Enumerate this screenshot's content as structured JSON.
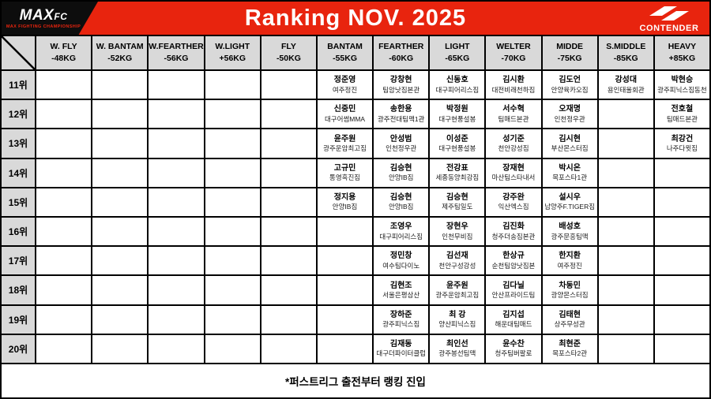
{
  "header": {
    "title": "Ranking NOV. 2025",
    "maxfc_logo": {
      "brand": "MAX",
      "brand_suffix": "FC",
      "tagline": "MAX FIGHTING CHAMPIONSHIP"
    },
    "contender_logo": {
      "brand": "CONTENDER",
      "icon": "contender-double-chevron-icon"
    }
  },
  "colors": {
    "header_bg": "#e8240e",
    "logo_black": "#0d0d0d",
    "grid_line": "#000000",
    "header_cell_bg": "#d9d9d9",
    "cell_bg": "#ffffff"
  },
  "table": {
    "corner_icon": "diagonal-slash-icon",
    "columns": [
      {
        "label": "W. FLY",
        "weight": "-48KG"
      },
      {
        "label": "W. BANTAM",
        "weight": "-52KG"
      },
      {
        "label": "W.FEARTHER",
        "weight": "-56KG"
      },
      {
        "label": "W.LIGHT",
        "weight": "+56KG"
      },
      {
        "label": "FLY",
        "weight": "-50KG"
      },
      {
        "label": "BANTAM",
        "weight": "-55KG"
      },
      {
        "label": "FEARTHER",
        "weight": "-60KG"
      },
      {
        "label": "LIGHT",
        "weight": "-65KG"
      },
      {
        "label": "WELTER",
        "weight": "-70KG"
      },
      {
        "label": "MIDDE",
        "weight": "-75KG"
      },
      {
        "label": "S.MIDDLE",
        "weight": "-85KG"
      },
      {
        "label": "HEAVY",
        "weight": "+85KG"
      }
    ],
    "rows": [
      {
        "rank": "11위",
        "cells": [
          null,
          null,
          null,
          null,
          null,
          {
            "name": "정준영",
            "gym": "여주정진"
          },
          {
            "name": "강창현",
            "gym": "팀암낫짐본관"
          },
          {
            "name": "신동호",
            "gym": "대구피어리스짐"
          },
          {
            "name": "김시환",
            "gym": "대전비래천하짐"
          },
          {
            "name": "김도언",
            "gym": "안양육카오짐"
          },
          {
            "name": "강성대",
            "gym": "용인태울회관"
          },
          {
            "name": "박현승",
            "gym": "광주피닉스짐동천"
          }
        ]
      },
      {
        "rank": "12위",
        "cells": [
          null,
          null,
          null,
          null,
          null,
          {
            "name": "신중민",
            "gym": "대구어썸MMA"
          },
          {
            "name": "송한용",
            "gym": "광주전대팀맥1관"
          },
          {
            "name": "박정원",
            "gym": "대구현풍설봉"
          },
          {
            "name": "서수혁",
            "gym": "팀매드본관"
          },
          {
            "name": "오재명",
            "gym": "인천정우관"
          },
          null,
          {
            "name": "전호철",
            "gym": "팀매드본관"
          }
        ]
      },
      {
        "rank": "13위",
        "cells": [
          null,
          null,
          null,
          null,
          null,
          {
            "name": "윤주원",
            "gym": "광주운암최고짐"
          },
          {
            "name": "안성범",
            "gym": "인천정우관"
          },
          {
            "name": "이성준",
            "gym": "대구현풍설봉"
          },
          {
            "name": "성기준",
            "gym": "천안강성짐"
          },
          {
            "name": "김시현",
            "gym": "부산몬스터짐"
          },
          null,
          {
            "name": "최강건",
            "gym": "나주다윗짐"
          }
        ]
      },
      {
        "rank": "14위",
        "cells": [
          null,
          null,
          null,
          null,
          null,
          {
            "name": "고규민",
            "gym": "통영흑진짐"
          },
          {
            "name": "김승현",
            "gym": "안양IB짐"
          },
          {
            "name": "전강표",
            "gym": "세종동양최강짐"
          },
          {
            "name": "장재현",
            "gym": "마산팀스타내서"
          },
          {
            "name": "박시온",
            "gym": "목포스타1관"
          },
          null,
          null
        ]
      },
      {
        "rank": "15위",
        "cells": [
          null,
          null,
          null,
          null,
          null,
          {
            "name": "정지용",
            "gym": "안양IB짐"
          },
          {
            "name": "김승현",
            "gym": "안양IB짐"
          },
          {
            "name": "김승현",
            "gym": "제주팀일도"
          },
          {
            "name": "강주완",
            "gym": "익산엑스짐"
          },
          {
            "name": "설시우",
            "gym": "남양주F.TIGER짐"
          },
          null,
          null
        ]
      },
      {
        "rank": "16위",
        "cells": [
          null,
          null,
          null,
          null,
          null,
          null,
          {
            "name": "조영우",
            "gym": "대구피어리스짐"
          },
          {
            "name": "장현우",
            "gym": "인천무비짐"
          },
          {
            "name": "김진화",
            "gym": "청주더송짐본관"
          },
          {
            "name": "배성호",
            "gym": "광주문흥팀맥"
          },
          null,
          null
        ]
      },
      {
        "rank": "17위",
        "cells": [
          null,
          null,
          null,
          null,
          null,
          null,
          {
            "name": "정민창",
            "gym": "여수팀다이노"
          },
          {
            "name": "김선재",
            "gym": "천안구성강성"
          },
          {
            "name": "한상규",
            "gym": "순천팀암낫짐본"
          },
          {
            "name": "한지환",
            "gym": "여주정진"
          },
          null,
          null
        ]
      },
      {
        "rank": "18위",
        "cells": [
          null,
          null,
          null,
          null,
          null,
          null,
          {
            "name": "김현조",
            "gym": "서울은평삼산"
          },
          {
            "name": "윤주원",
            "gym": "광주운암최고짐"
          },
          {
            "name": "김다닐",
            "gym": "안산프라이드팀"
          },
          {
            "name": "차동민",
            "gym": "광양몬스터짐"
          },
          null,
          null
        ]
      },
      {
        "rank": "19위",
        "cells": [
          null,
          null,
          null,
          null,
          null,
          null,
          {
            "name": "장하준",
            "gym": "광주피닉스짐"
          },
          {
            "name": "최 강",
            "gym": "양산피닉스짐"
          },
          {
            "name": "김지섭",
            "gym": "해운대팀매드"
          },
          {
            "name": "김태현",
            "gym": "상주무성관"
          },
          null,
          null
        ]
      },
      {
        "rank": "20위",
        "cells": [
          null,
          null,
          null,
          null,
          null,
          null,
          {
            "name": "김재동",
            "gym": "대구더파이터클럽"
          },
          {
            "name": "최인선",
            "gym": "광주봉선팀맥"
          },
          {
            "name": "윤수찬",
            "gym": "청주팀버팔로"
          },
          {
            "name": "최현준",
            "gym": "목포스타2관"
          },
          null,
          null
        ]
      }
    ]
  },
  "footer": {
    "note": "*퍼스트리그 출전부터 랭킹 진입"
  }
}
